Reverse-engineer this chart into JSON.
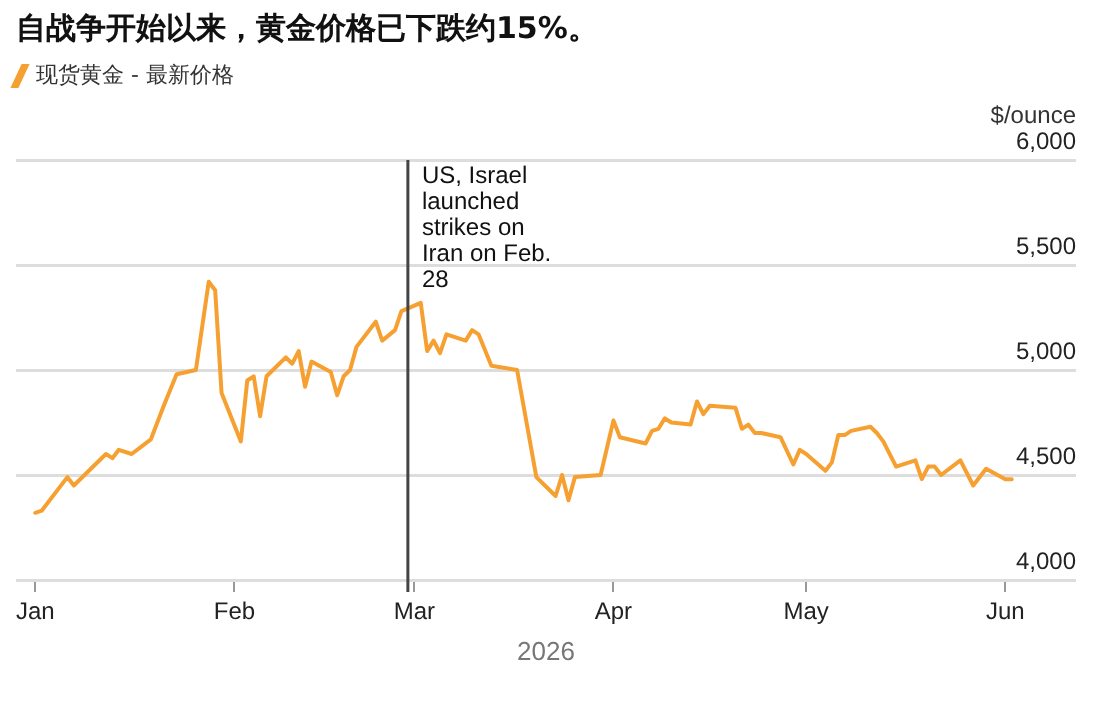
{
  "chart_data": {
    "type": "line",
    "title": "自战争开始以来，黄金价格已下跌约15%。",
    "ylabel": "$/ounce",
    "xlabel": "2026",
    "x": [
      "2026-01-01",
      "2026-01-02",
      "2026-01-06",
      "2026-01-07",
      "2026-01-12",
      "2026-01-13",
      "2026-01-14",
      "2026-01-16",
      "2026-01-19",
      "2026-01-21",
      "2026-01-23",
      "2026-01-26",
      "2026-01-28",
      "2026-01-29",
      "2026-01-30",
      "2026-02-02",
      "2026-02-03",
      "2026-02-04",
      "2026-02-05",
      "2026-02-06",
      "2026-02-09",
      "2026-02-10",
      "2026-02-11",
      "2026-02-12",
      "2026-02-13",
      "2026-02-16",
      "2026-02-17",
      "2026-02-18",
      "2026-02-19",
      "2026-02-20",
      "2026-02-23",
      "2026-02-24",
      "2026-02-26",
      "2026-02-27",
      "2026-03-02",
      "2026-03-03",
      "2026-03-04",
      "2026-03-05",
      "2026-03-06",
      "2026-03-09",
      "2026-03-10",
      "2026-03-11",
      "2026-03-13",
      "2026-03-17",
      "2026-03-20",
      "2026-03-23",
      "2026-03-24",
      "2026-03-25",
      "2026-03-26",
      "2026-03-30",
      "2026-04-01",
      "2026-04-02",
      "2026-04-06",
      "2026-04-07",
      "2026-04-08",
      "2026-04-09",
      "2026-04-10",
      "2026-04-13",
      "2026-04-14",
      "2026-04-15",
      "2026-04-16",
      "2026-04-20",
      "2026-04-21",
      "2026-04-22",
      "2026-04-23",
      "2026-04-24",
      "2026-04-27",
      "2026-04-29",
      "2026-04-30",
      "2026-05-01",
      "2026-05-04",
      "2026-05-05",
      "2026-05-06",
      "2026-05-07",
      "2026-05-08",
      "2026-05-11",
      "2026-05-12",
      "2026-05-13",
      "2026-05-15",
      "2026-05-18",
      "2026-05-19",
      "2026-05-20",
      "2026-05-21",
      "2026-05-22",
      "2026-05-25",
      "2026-05-27",
      "2026-05-29",
      "2026-06-01",
      "2026-06-02"
    ],
    "series": [
      {
        "name": "现货黄金 - 最新价格",
        "color": "#f7a032",
        "values": [
          4320,
          4330,
          4490,
          4450,
          4600,
          4580,
          4620,
          4600,
          4670,
          4830,
          4980,
          5000,
          5420,
          5380,
          4890,
          4660,
          4950,
          4970,
          4780,
          4970,
          5060,
          5030,
          5090,
          4920,
          5040,
          4990,
          4880,
          4970,
          5000,
          5110,
          5230,
          5140,
          5190,
          5280,
          5320,
          5090,
          5140,
          5080,
          5170,
          5140,
          5190,
          5170,
          5020,
          5000,
          4490,
          4400,
          4500,
          4380,
          4490,
          4500,
          4760,
          4680,
          4650,
          4710,
          4720,
          4770,
          4750,
          4740,
          4850,
          4790,
          4830,
          4820,
          4720,
          4740,
          4700,
          4700,
          4680,
          4550,
          4620,
          4600,
          4520,
          4560,
          4690,
          4690,
          4710,
          4730,
          4700,
          4660,
          4540,
          4570,
          4480,
          4540,
          4540,
          4500,
          4570,
          4450,
          4530,
          4480,
          4480
        ]
      }
    ],
    "xlim": [
      "2025-12-29",
      "2026-06-12"
    ],
    "xticks": [
      {
        "value": "2026-01-01",
        "label": "Jan"
      },
      {
        "value": "2026-02-01",
        "label": "Feb"
      },
      {
        "value": "2026-03-01",
        "label": "Mar"
      },
      {
        "value": "2026-04-01",
        "label": "Apr"
      },
      {
        "value": "2026-05-01",
        "label": "May"
      },
      {
        "value": "2026-06-01",
        "label": "Jun"
      }
    ],
    "ylim": [
      4000,
      6000
    ],
    "yticks": [
      {
        "value": 4000,
        "label": "4,000"
      },
      {
        "value": 4500,
        "label": "4,500"
      },
      {
        "value": 5000,
        "label": "5,000"
      },
      {
        "value": 5500,
        "label": "5,500"
      },
      {
        "value": 6000,
        "label": "6,000"
      }
    ],
    "grid": "y",
    "legend": "top left",
    "marker": "none",
    "line_style": "solid",
    "ref_lines": [
      {
        "axis": "x",
        "value": "2026-02-28",
        "label": "US, Israel launched strikes on Iran on Feb. 28",
        "color": "#444444",
        "line_style": "solid"
      }
    ]
  }
}
